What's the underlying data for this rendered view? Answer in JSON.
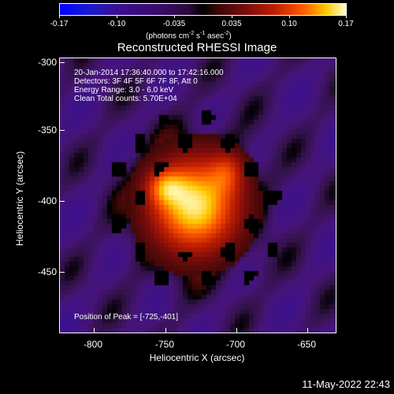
{
  "colorbar": {
    "tick_labels": [
      "-0.17",
      "-0.10",
      "-0.035",
      "0.035",
      "0.10",
      "0.17"
    ],
    "units_text": "(photons cm",
    "units_exp1": "-2",
    "units_mid": " s",
    "units_exp2": "-1",
    "units_mid2": " asec",
    "units_exp3": "-2",
    "units_end": ")"
  },
  "title": "Reconstructed RHESSI Image",
  "info": {
    "time_range": "20-Jan-2014 17:36:40.000 to 17:42:16.000",
    "detectors": "Detectors: 3F 4F 5F 6F 7F 8F, Att 0",
    "energy": "Energy Range: 3.0 - 6.0 keV",
    "clean": "Clean     Total counts: 5.70E+04",
    "peak": "Position of Peak = [-725,-401]"
  },
  "axes": {
    "xlabel": "Heliocentric X (arcsec)",
    "ylabel": "Heliocentric Y (arcsec)",
    "x_ticks": [
      "-800",
      "-750",
      "-700",
      "-650"
    ],
    "y_ticks": [
      "-300",
      "-350",
      "-400",
      "-450"
    ]
  },
  "image_data": {
    "x_range": [
      -825,
      -625
    ],
    "y_range": [
      -300,
      -490
    ],
    "value_range": [
      -0.17,
      0.17
    ],
    "peak_position": [
      -725,
      -401
    ]
  },
  "date_stamp": "11-May-2022 22:43"
}
